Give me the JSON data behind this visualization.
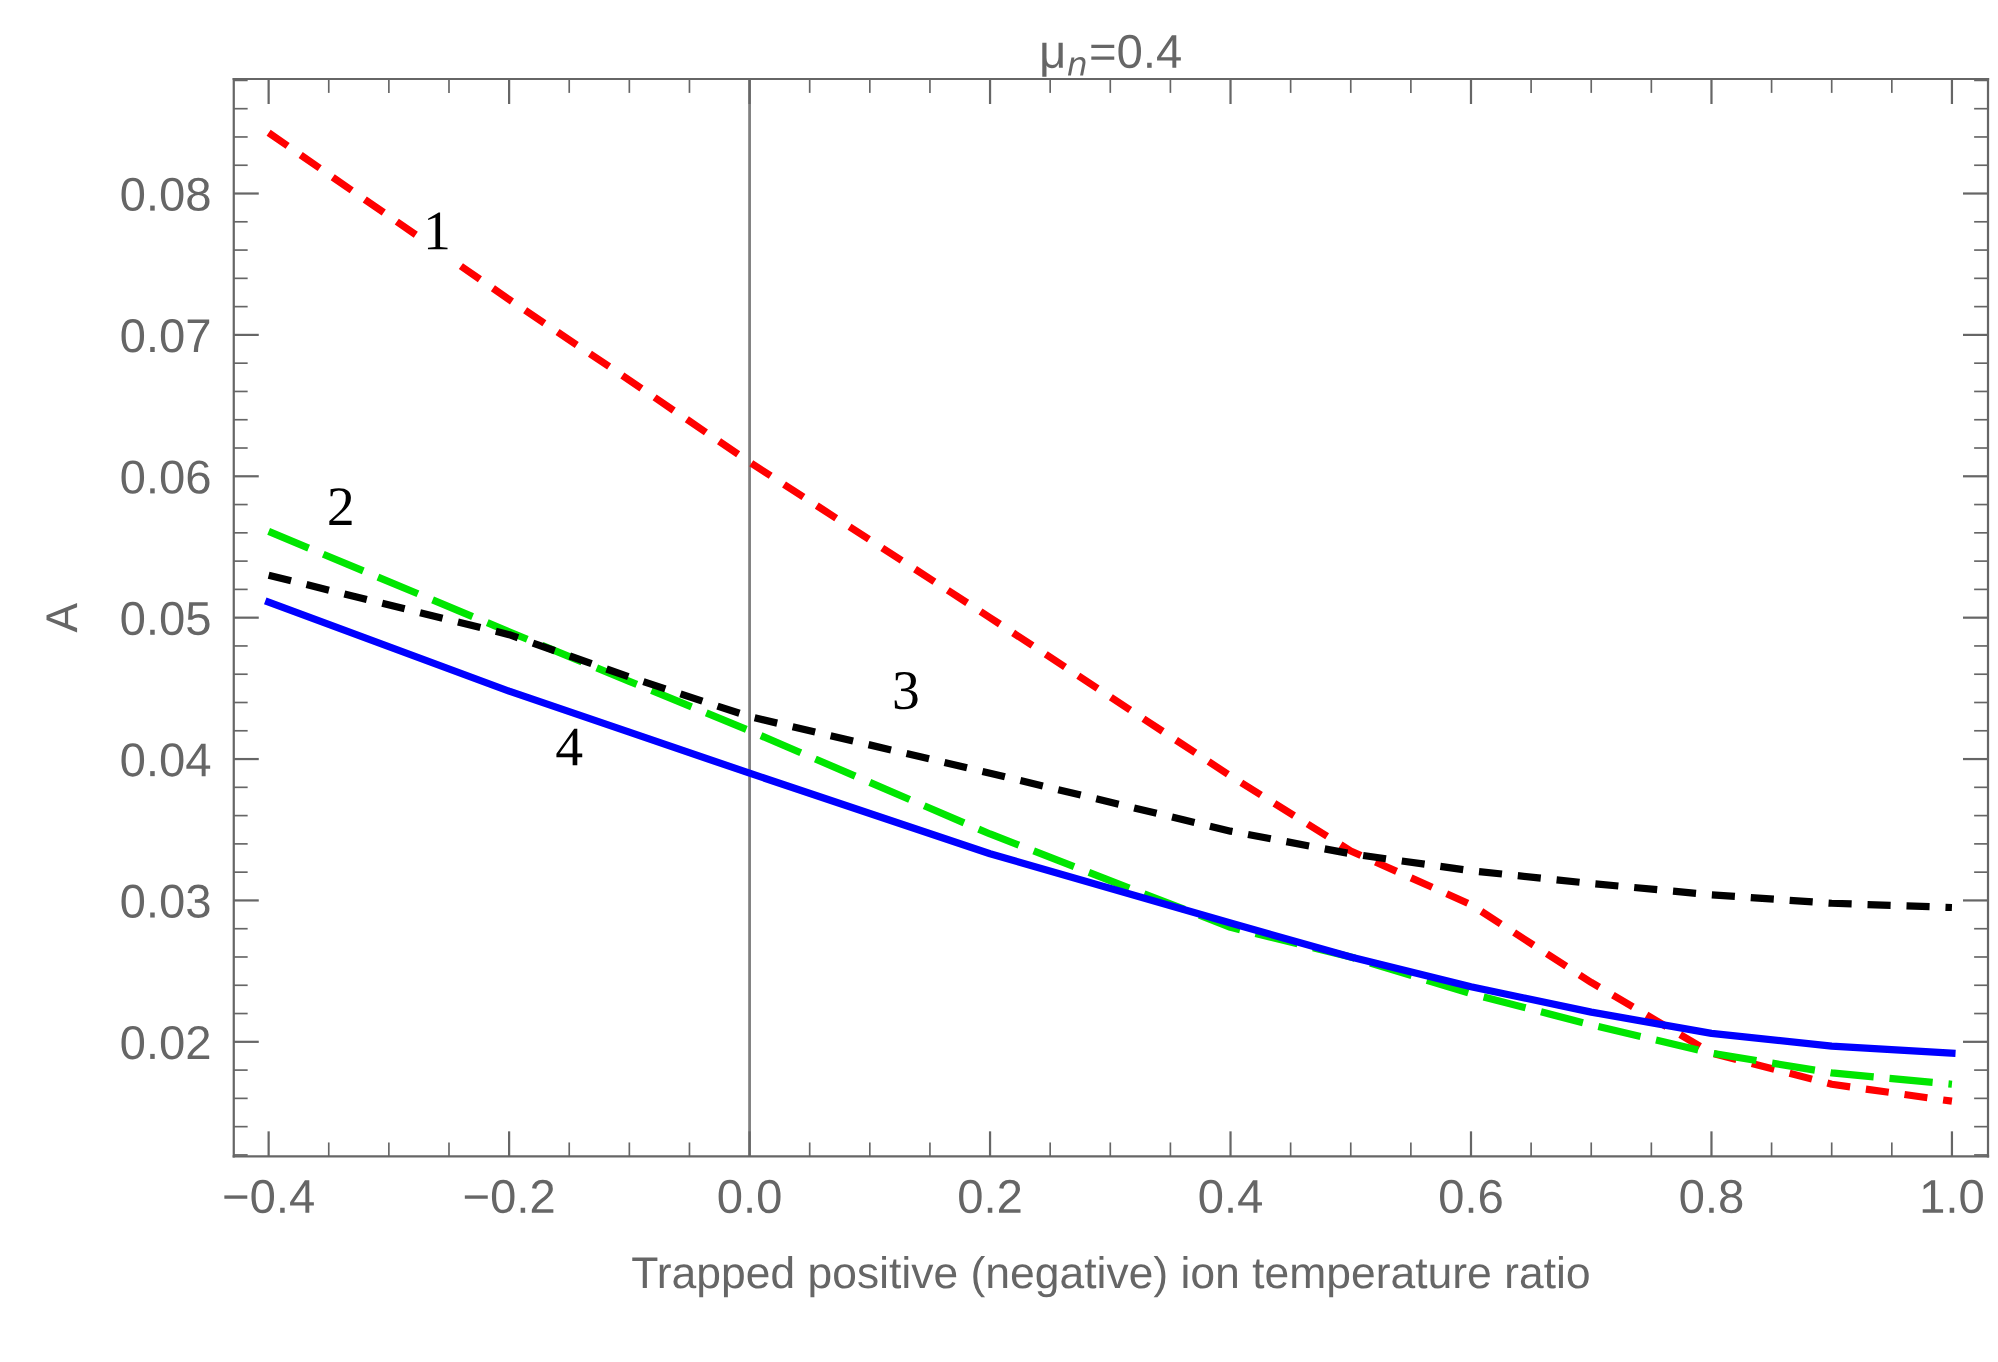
{
  "chart_data": {
    "type": "line",
    "title": "μ$_{n}$=0.4",
    "xlabel": "Trapped positive (negative) ion temperature ratio",
    "ylabel": "A",
    "x": [
      -0.4,
      -0.2,
      -0.1,
      0.0,
      0.2,
      0.4,
      0.5,
      0.6,
      0.7,
      0.8,
      0.9,
      1.0
    ],
    "series": [
      {
        "color": "#ff0000",
        "line_style": "dashed",
        "values": [
          0.0843,
          0.0725,
          0.0668,
          0.061,
          0.05,
          0.0388,
          0.0335,
          0.0297,
          0.0242,
          0.0192,
          0.017,
          0.0158
        ]
      },
      {
        "color": "#00e600",
        "line_style": "dashed",
        "values": [
          0.0561,
          0.049,
          0.0455,
          0.042,
          0.0347,
          0.0281,
          0.026,
          0.0234,
          0.0212,
          0.0192,
          0.0178,
          0.017
        ]
      },
      {
        "color": "#000000",
        "line_style": "dashed",
        "values": [
          0.053,
          0.0488,
          0.0458,
          0.043,
          0.039,
          0.0349,
          0.0333,
          0.0321,
          0.0312,
          0.0304,
          0.0298,
          0.0295
        ]
      },
      {
        "color": "#0000ff",
        "line_style": "solid",
        "values": [
          0.0511,
          0.0448,
          0.0419,
          0.039,
          0.0333,
          0.0284,
          0.026,
          0.0239,
          0.0221,
          0.0206,
          0.0197,
          0.0192
        ]
      }
    ],
    "annotations": [
      {
        "text": "1",
        "x": -0.26,
        "y": 0.077
      },
      {
        "text": "2",
        "x": -0.34,
        "y": 0.0575
      },
      {
        "text": "3",
        "x": 0.13,
        "y": 0.0445
      },
      {
        "text": "4",
        "x": -0.15,
        "y": 0.0405
      }
    ],
    "ref_lines": [
      {
        "axis": "x",
        "value": 0,
        "color": "#808080"
      }
    ],
    "xlim": [
      -0.429,
      1.03
    ],
    "ylim": [
      0.0119,
      0.0881
    ],
    "xticks": [
      {
        "value": -0.4,
        "label": "−0.4"
      },
      {
        "value": -0.35,
        "label": null
      },
      {
        "value": -0.3,
        "label": null
      },
      {
        "value": -0.25,
        "label": null
      },
      {
        "value": -0.2,
        "label": "−0.2"
      },
      {
        "value": -0.15,
        "label": null
      },
      {
        "value": -0.1,
        "label": null
      },
      {
        "value": -0.05,
        "label": null
      },
      {
        "value": 0.0,
        "label": "0.0"
      },
      {
        "value": 0.05,
        "label": null
      },
      {
        "value": 0.1,
        "label": null
      },
      {
        "value": 0.15,
        "label": null
      },
      {
        "value": 0.2,
        "label": "0.2"
      },
      {
        "value": 0.25,
        "label": null
      },
      {
        "value": 0.3,
        "label": null
      },
      {
        "value": 0.35,
        "label": null
      },
      {
        "value": 0.4,
        "label": "0.4"
      },
      {
        "value": 0.45,
        "label": null
      },
      {
        "value": 0.5,
        "label": null
      },
      {
        "value": 0.55,
        "label": null
      },
      {
        "value": 0.6,
        "label": "0.6"
      },
      {
        "value": 0.65,
        "label": null
      },
      {
        "value": 0.7,
        "label": null
      },
      {
        "value": 0.75,
        "label": null
      },
      {
        "value": 0.8,
        "label": "0.8"
      },
      {
        "value": 0.85,
        "label": null
      },
      {
        "value": 0.9,
        "label": null
      },
      {
        "value": 0.95,
        "label": null
      },
      {
        "value": 1.0,
        "label": "1.0"
      }
    ],
    "yticks": [
      {
        "value": 0.012,
        "label": null
      },
      {
        "value": 0.014,
        "label": null
      },
      {
        "value": 0.016,
        "label": null
      },
      {
        "value": 0.018,
        "label": null
      },
      0.02,
      {
        "value": 0.022,
        "label": null
      },
      {
        "value": 0.024,
        "label": null
      },
      {
        "value": 0.026,
        "label": null
      },
      {
        "value": 0.028,
        "label": null
      },
      0.03,
      {
        "value": 0.032,
        "label": null
      },
      {
        "value": 0.034,
        "label": null
      },
      {
        "value": 0.036,
        "label": null
      },
      {
        "value": 0.038,
        "label": null
      },
      0.04,
      {
        "value": 0.042,
        "label": null
      },
      {
        "value": 0.044,
        "label": null
      },
      {
        "value": 0.046,
        "label": null
      },
      {
        "value": 0.048,
        "label": null
      },
      0.05,
      {
        "value": 0.052,
        "label": null
      },
      {
        "value": 0.054,
        "label": null
      },
      {
        "value": 0.056,
        "label": null
      },
      {
        "value": 0.058,
        "label": null
      },
      0.06,
      {
        "value": 0.062,
        "label": null
      },
      {
        "value": 0.064,
        "label": null
      },
      {
        "value": 0.066,
        "label": null
      },
      {
        "value": 0.068,
        "label": null
      },
      0.07,
      {
        "value": 0.072,
        "label": null
      },
      {
        "value": 0.074,
        "label": null
      },
      {
        "value": 0.076,
        "label": null
      },
      {
        "value": 0.078,
        "label": null
      },
      0.08,
      {
        "value": 0.082,
        "label": null
      },
      {
        "value": 0.084,
        "label": null
      },
      {
        "value": 0.086,
        "label": null
      },
      {
        "value": 0.088,
        "label": null
      }
    ],
    "grid": false,
    "legend": false
  }
}
